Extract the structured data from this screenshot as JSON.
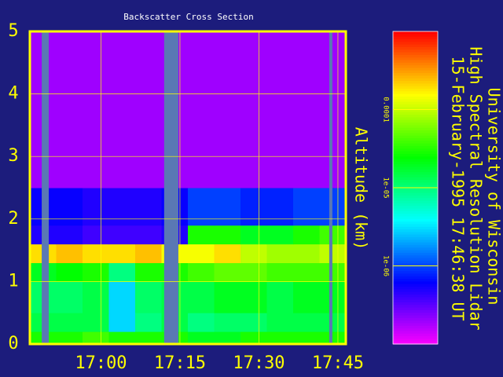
{
  "chart_data": {
    "type": "heatmap",
    "title": "Backscatter Cross Section",
    "y_label": "Altitude (km)",
    "annotations": [
      "University of Wisconsin",
      "High Spectral Resolution Lidar",
      "15-February-1995 17:46:38 UT"
    ],
    "xlim": [
      1006.5,
      1066.5
    ],
    "xticks": [
      {
        "value": 1020,
        "label": "17:00"
      },
      {
        "value": 1035,
        "label": "17:15"
      },
      {
        "value": 1050,
        "label": "17:30"
      },
      {
        "value": 1065,
        "label": "17:45"
      }
    ],
    "ylim": [
      0,
      5
    ],
    "yticks": [
      0,
      1,
      2,
      3,
      4,
      5
    ],
    "grid": true,
    "x_bins": [
      1006.5,
      1011.5,
      1016.5,
      1021.5,
      1026.5,
      1031.5,
      1036.5,
      1041.5,
      1046.5,
      1051.5,
      1056.5,
      1061.5,
      1066.5
    ],
    "y_bins": [
      0,
      0.2,
      0.5,
      1.0,
      1.3,
      1.6,
      1.9,
      2.5,
      5
    ],
    "z": [
      [
        3e-05,
        3e-05,
        4e-05,
        3e-05,
        3e-05,
        3e-05,
        2e-05,
        2e-05,
        3e-05,
        3e-05,
        3e-05,
        3e-05
      ],
      [
        1.5e-05,
        1.5e-05,
        1.5e-05,
        3e-06,
        1e-05,
        1.5e-05,
        1e-05,
        1.2e-05,
        1.2e-05,
        1.5e-05,
        1.5e-05,
        1.5e-05
      ],
      [
        1.2e-05,
        1.2e-05,
        1.5e-05,
        3e-06,
        1.2e-05,
        1.5e-05,
        1.5e-05,
        2e-05,
        2e-05,
        1.5e-05,
        2e-05,
        2e-05
      ],
      [
        2e-05,
        2.5e-05,
        3e-05,
        1e-05,
        3e-05,
        3e-05,
        4e-05,
        5e-05,
        5e-05,
        4e-05,
        4e-05,
        4e-05
      ],
      [
        0.0002,
        0.00025,
        0.0002,
        0.0002,
        0.00025,
        0.00015,
        0.00015,
        0.0002,
        0.0001,
        8e-05,
        8e-05,
        0.0001
      ],
      [
        5e-07,
        5e-07,
        4e-07,
        4e-07,
        4e-07,
        5e-07,
        3e-05,
        3e-05,
        2e-05,
        2e-05,
        3e-05,
        4e-05
      ],
      [
        6e-07,
        6e-07,
        5e-07,
        5e-07,
        5e-07,
        6e-07,
        1e-06,
        1e-06,
        8e-07,
        8e-07,
        1e-06,
        1e-06
      ],
      [
        2e-07,
        2e-07,
        2e-07,
        2e-07,
        2e-07,
        2e-07,
        2e-07,
        2e-07,
        2e-07,
        2e-07,
        2e-07,
        2e-07
      ]
    ],
    "gaps": [
      [
        1008.75,
        1010.1
      ],
      [
        1032,
        1034.7
      ],
      [
        1063.35,
        1063.95
      ]
    ],
    "zscale": "log",
    "clim": [
      1e-07,
      0.001
    ],
    "cticks": [
      {
        "value": 0.0001,
        "label": "0.0001"
      },
      {
        "value": 1e-05,
        "label": "1e-05"
      },
      {
        "value": 1e-06,
        "label": "1e-06"
      }
    ]
  }
}
